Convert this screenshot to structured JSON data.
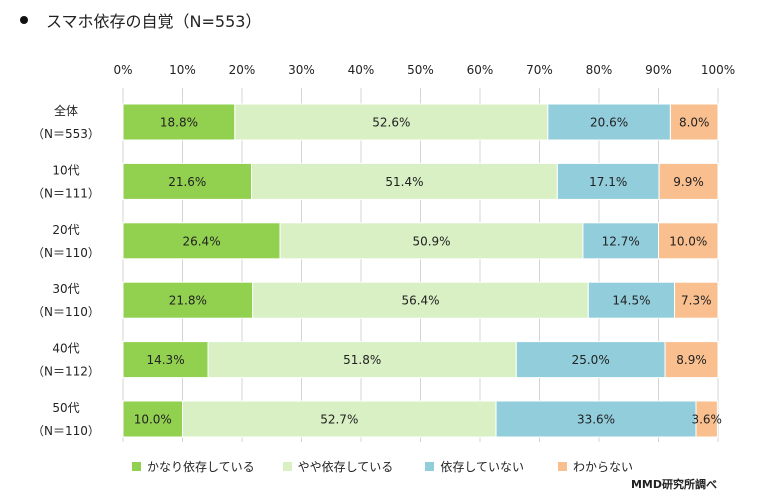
{
  "title": "スマホ依存の自覚（N=553）",
  "credit": "MMD研究所調べ",
  "chart_data": {
    "type": "bar",
    "orientation": "horizontal",
    "stacked": true,
    "percent_stacked": true,
    "xlim": [
      0,
      100
    ],
    "x_ticks": [
      "0%",
      "10%",
      "20%",
      "30%",
      "40%",
      "50%",
      "60%",
      "70%",
      "80%",
      "90%",
      "100%"
    ],
    "grid": "vertical",
    "legend_position": "bottom",
    "categories": [
      {
        "name": "全体",
        "n": "（N＝553）"
      },
      {
        "name": "10代",
        "n": "（N＝111）"
      },
      {
        "name": "20代",
        "n": "（N＝110）"
      },
      {
        "name": "30代",
        "n": "（N＝110）"
      },
      {
        "name": "40代",
        "n": "（N＝112）"
      },
      {
        "name": "50代",
        "n": "（N＝110）"
      }
    ],
    "series": [
      {
        "name": "かなり依存している",
        "color": "#92d050",
        "values": [
          18.8,
          21.6,
          26.4,
          21.8,
          14.3,
          10.0
        ],
        "labels": [
          "18.8%",
          "21.6%",
          "26.4%",
          "21.8%",
          "14.3%",
          "10.0%"
        ]
      },
      {
        "name": "やや依存している",
        "color": "#d8f0c4",
        "values": [
          52.6,
          51.4,
          50.9,
          56.4,
          51.8,
          52.7
        ],
        "labels": [
          "52.6%",
          "51.4%",
          "50.9%",
          "56.4%",
          "51.8%",
          "52.7%"
        ]
      },
      {
        "name": "依存していない",
        "color": "#92cddc",
        "values": [
          20.6,
          17.1,
          12.7,
          14.5,
          25.0,
          33.6
        ],
        "labels": [
          "20.6%",
          "17.1%",
          "12.7%",
          "14.5%",
          "25.0%",
          "33.6%"
        ]
      },
      {
        "name": "わからない",
        "color": "#fabf8f",
        "values": [
          8.0,
          9.9,
          10.0,
          7.3,
          8.9,
          3.6
        ],
        "labels": [
          "8.0%",
          "9.9%",
          "10.0%",
          "7.3%",
          "8.9%",
          "3.6%"
        ]
      }
    ]
  }
}
